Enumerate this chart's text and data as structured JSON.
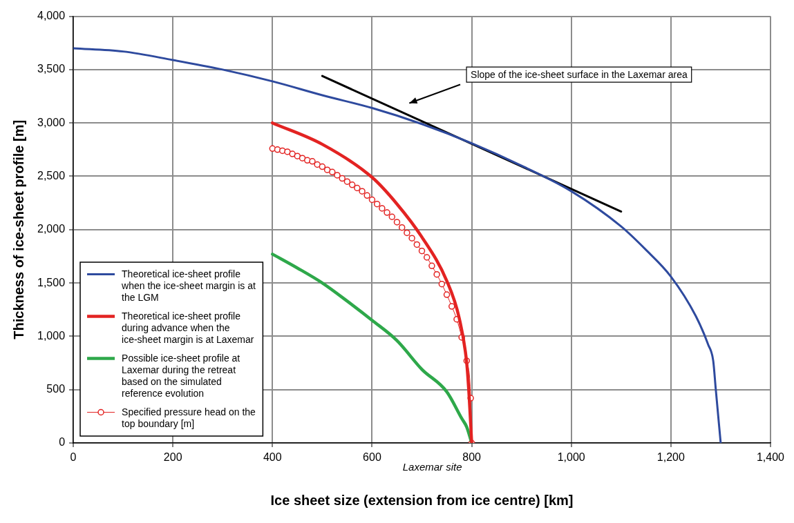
{
  "chart_data": {
    "type": "line",
    "xlabel": "Ice sheet size (extension from ice centre) [km]",
    "ylabel": "Thickness of ice-sheet profile [m]",
    "xlim": [
      0,
      1400
    ],
    "xticks": [
      0,
      200,
      400,
      600,
      800,
      {
        "value": 1000,
        "label": "1,000"
      },
      {
        "value": 1200,
        "label": "1,200"
      },
      {
        "value": 1400,
        "label": "1,400"
      }
    ],
    "ylim": [
      0,
      4000
    ],
    "yticks": [
      0,
      500,
      {
        "value": 1000,
        "label": "1,000"
      },
      {
        "value": 1500,
        "label": "1,500"
      },
      {
        "value": 2000,
        "label": "2,000"
      },
      {
        "value": 2500,
        "label": "2,500"
      },
      {
        "value": 3000,
        "label": "3,000"
      },
      {
        "value": 3500,
        "label": "3,500"
      },
      {
        "value": 4000,
        "label": "4,000"
      }
    ],
    "grid": true,
    "legend": "bottom left",
    "marker": "none",
    "line_style": "solid",
    "series": [
      {
        "name": "Theoretical ice-sheet profile when the ice-sheet margin is at the LGM",
        "color": "#2e4a9e",
        "x": [
          0,
          100,
          200,
          300,
          400,
          500,
          600,
          700,
          800,
          900,
          1000,
          1100,
          1150,
          1200,
          1250,
          1275,
          1285,
          1290,
          1300
        ],
        "values": [
          3700,
          3670,
          3590,
          3500,
          3390,
          3260,
          3140,
          2990,
          2810,
          2600,
          2360,
          2030,
          1810,
          1560,
          1190,
          920,
          770,
          510,
          0
        ]
      },
      {
        "name": "Theoretical ice-sheet profile during advance when the ice-sheet margin is at Laxemar",
        "color": "#e32322",
        "x": [
          400,
          500,
          600,
          650,
          700,
          750,
          775,
          790,
          795,
          800
        ],
        "values": [
          3000,
          2800,
          2490,
          2240,
          1930,
          1520,
          1170,
          750,
          430,
          0
        ]
      },
      {
        "name": "Possible ice-sheet profile at Laxemar during the retreat based on the simulated reference evolution",
        "color": "#2ea84a",
        "x": [
          400,
          450,
          500,
          550,
          600,
          650,
          700,
          750,
          780,
          790,
          800
        ],
        "values": [
          1770,
          1640,
          1500,
          1330,
          1150,
          960,
          690,
          480,
          230,
          150,
          0
        ]
      },
      {
        "name": "Specified pressure head on the top boundary [m]",
        "color": "#e32322",
        "marker": "circle",
        "x": [
          400,
          410,
          420,
          430,
          440,
          450,
          460,
          470,
          480,
          490,
          500,
          510,
          520,
          530,
          540,
          550,
          560,
          570,
          580,
          590,
          600,
          610,
          620,
          630,
          640,
          650,
          660,
          670,
          680,
          690,
          700,
          710,
          720,
          730,
          740,
          750,
          760,
          770,
          780,
          790,
          798,
          800
        ],
        "values": [
          2760,
          2750,
          2740,
          2730,
          2710,
          2690,
          2670,
          2650,
          2640,
          2610,
          2590,
          2560,
          2540,
          2510,
          2480,
          2450,
          2420,
          2390,
          2360,
          2320,
          2280,
          2240,
          2200,
          2160,
          2120,
          2070,
          2020,
          1970,
          1920,
          1860,
          1800,
          1740,
          1660,
          1580,
          1490,
          1390,
          1280,
          1160,
          990,
          770,
          420,
          0
        ]
      },
      {
        "color": "#000000",
        "x": [
          500,
          1100
        ],
        "values": [
          3440,
          2170
        ]
      }
    ],
    "annotations": [
      "Slope of the ice-sheet surface in the Laxemar area",
      "Laxemar site"
    ]
  }
}
